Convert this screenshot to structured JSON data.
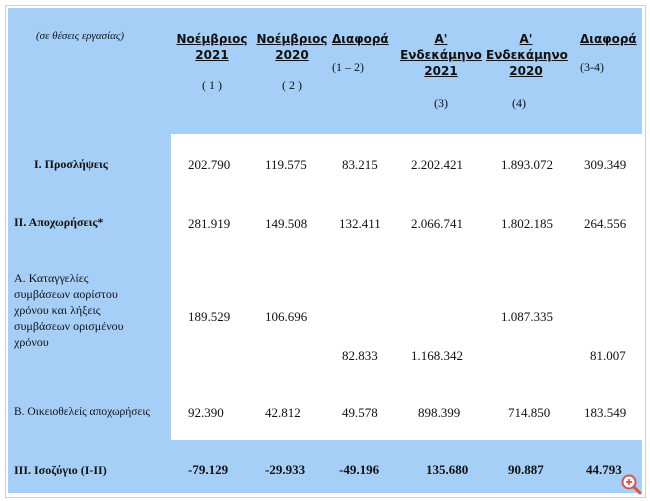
{
  "header": {
    "units": "(σε θέσεις εργασίας)",
    "col1": {
      "line1": "Νοέμβριος",
      "line2": "2021",
      "sub": "( 1 )"
    },
    "col2": {
      "line1": "Νοέμβριος",
      "line2": "2020",
      "sub": "( 2 )"
    },
    "col3": {
      "line1": "Διαφορά",
      "sub": "(1 – 2)"
    },
    "col4": {
      "line1": "Α'",
      "line2": "Ενδεκάμηνο",
      "line3": "2021",
      "sub": "(3)"
    },
    "col5": {
      "line1": "Α'",
      "line2": "Ενδεκάμηνο",
      "line3": "2020",
      "sub": "(4)"
    },
    "col6": {
      "line1": "Διαφορά",
      "sub": "(3-4)"
    }
  },
  "rows": {
    "hires": {
      "label": "Ι. Προσλήψεις",
      "v1": "202.790",
      "v2": "119.575",
      "v3": "83.215",
      "v4": "2.202.421",
      "v5": "1.893.072",
      "v6": "309.349"
    },
    "separations": {
      "label": "ΙΙ. Αποχωρήσεις*",
      "v1": "281.919",
      "v2": "149.508",
      "v3": "132.411",
      "v4": "2.066.741",
      "v5": "1.802.185",
      "v6": "264.556"
    },
    "dismissals": {
      "label_lines": [
        "Α. Καταγγελίες",
        "συμβάσεων αορίστου",
        "χρόνου και λήξεις",
        "συμβάσεων ορισμένου",
        "χρόνου"
      ],
      "v1": "189.529",
      "v2": "106.696",
      "v3": "82.833",
      "v4": "1.168.342",
      "v5": "1.087.335",
      "v6": "81.007"
    },
    "voluntary": {
      "label": "Β. Οικειοθελείς αποχωρήσεις",
      "v1": "92.390",
      "v2": "42.812",
      "v3": "49.578",
      "v4": "898.399",
      "v5": "714.850",
      "v6": "183.549"
    },
    "balance": {
      "label": "ΙΙΙ. Ισοζύγιο (Ι-ΙΙ)",
      "v1": "-79.129",
      "v2": "-29.933",
      "v3": "-49.196",
      "v4": "135.680",
      "v5": "90.887",
      "v6": "44.793"
    }
  },
  "icons": {
    "zoom": "zoom-in-icon"
  },
  "colors": {
    "band": "#a6cff7",
    "zoom": "#d9534f"
  }
}
